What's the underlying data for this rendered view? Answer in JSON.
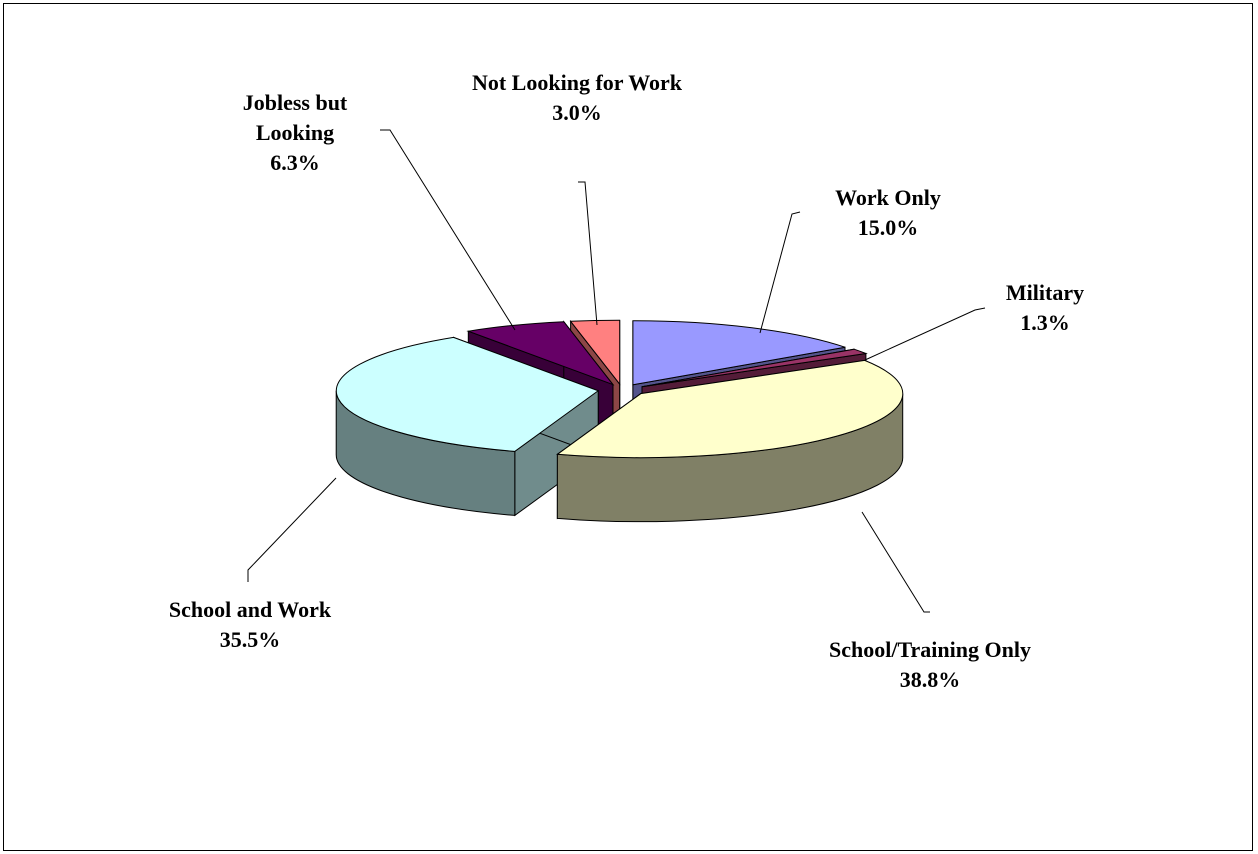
{
  "chart_data": {
    "type": "pie",
    "three_d": true,
    "exploded": true,
    "categories": [
      "Work Only",
      "Military",
      "School/Training Only",
      "School and Work",
      "Jobless but Looking",
      "Not Looking for Work"
    ],
    "values": [
      15.0,
      1.3,
      38.8,
      35.5,
      6.3,
      3.0
    ],
    "value_labels": [
      "15.0%",
      "1.3%",
      "38.8%",
      "35.5%",
      "6.3%",
      "3.0%"
    ],
    "colors": [
      "#9999ff",
      "#993366",
      "#ffffcc",
      "#ccffff",
      "#660066",
      "#ff8080"
    ]
  }
}
